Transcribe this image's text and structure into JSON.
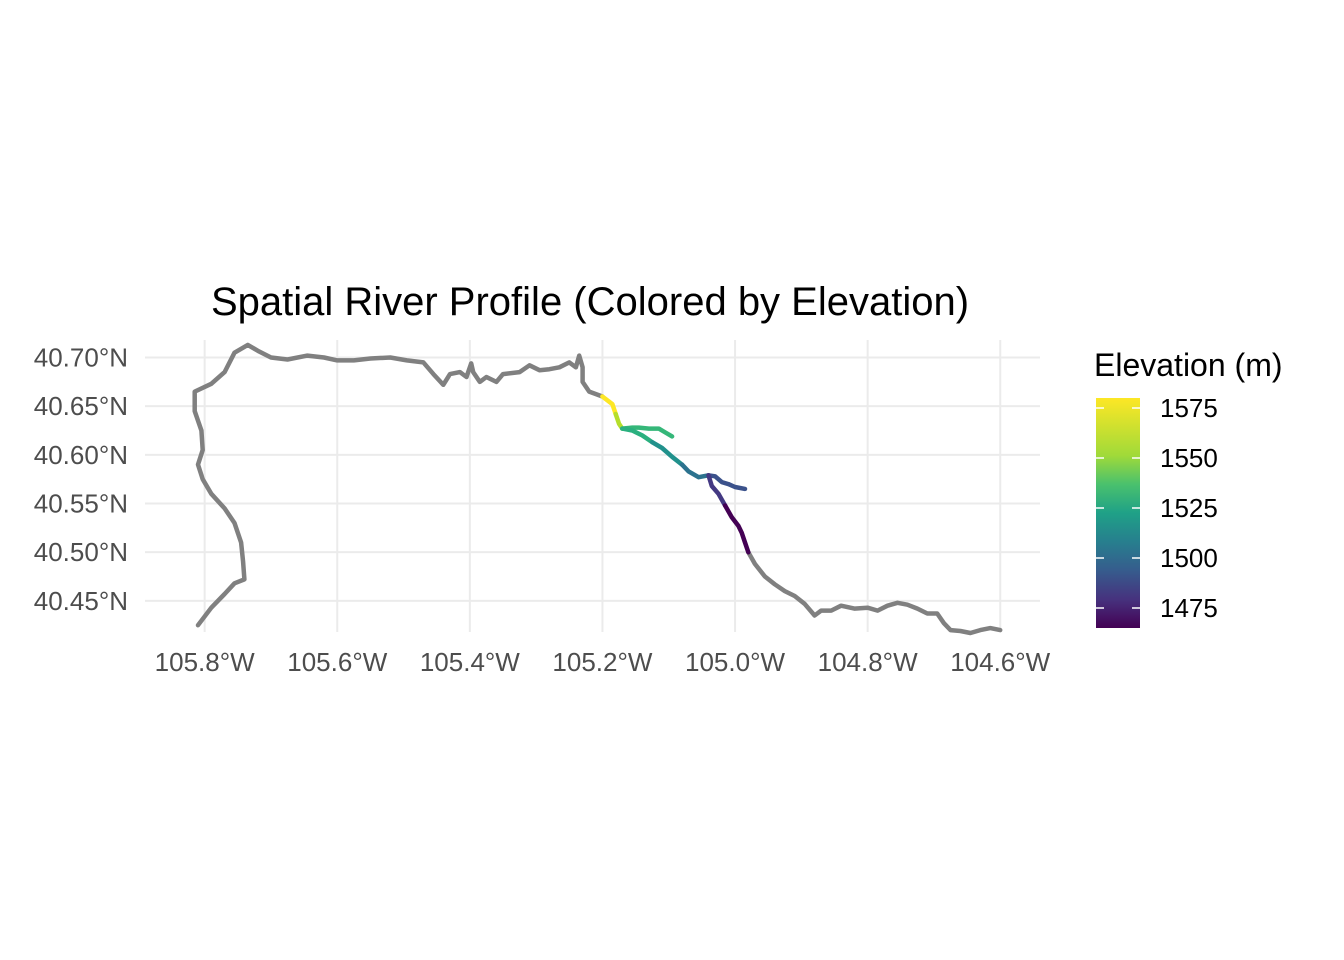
{
  "chart_data": {
    "type": "line",
    "title": "Spatial River Profile (Colored by Elevation)",
    "xlabel": "",
    "ylabel": "",
    "x_ticks": [
      {
        "value": -105.8,
        "label": "105.8°W"
      },
      {
        "value": -105.6,
        "label": "105.6°W"
      },
      {
        "value": -105.4,
        "label": "105.4°W"
      },
      {
        "value": -105.2,
        "label": "105.2°W"
      },
      {
        "value": -105.0,
        "label": "105.0°W"
      },
      {
        "value": -104.8,
        "label": "104.8°W"
      },
      {
        "value": -104.6,
        "label": "104.6°W"
      }
    ],
    "y_ticks": [
      {
        "value": 40.7,
        "label": "40.70°N"
      },
      {
        "value": 40.65,
        "label": "40.65°N"
      },
      {
        "value": 40.6,
        "label": "40.60°N"
      },
      {
        "value": 40.55,
        "label": "40.55°N"
      },
      {
        "value": 40.5,
        "label": "40.50°N"
      },
      {
        "value": 40.45,
        "label": "40.45°N"
      }
    ],
    "xlim": [
      -105.89,
      -104.54
    ],
    "ylim": [
      40.418,
      40.718
    ],
    "grid": true,
    "legend": {
      "title": "Elevation (m)",
      "position": "right",
      "colormap": "viridis",
      "range": [
        1465,
        1580
      ],
      "breaks": [
        {
          "value": 1575,
          "label": "1575"
        },
        {
          "value": 1550,
          "label": "1550"
        },
        {
          "value": 1525,
          "label": "1525"
        },
        {
          "value": 1500,
          "label": "1500"
        },
        {
          "value": 1475,
          "label": "1475"
        }
      ]
    },
    "series": [
      {
        "color": "#808080",
        "points": [
          [
            -105.81,
            40.425
          ],
          [
            -105.79,
            40.443
          ],
          [
            -105.77,
            40.457
          ],
          [
            -105.755,
            40.468
          ],
          [
            -105.74,
            40.472
          ],
          [
            -105.742,
            40.49
          ],
          [
            -105.745,
            40.51
          ],
          [
            -105.755,
            40.53
          ],
          [
            -105.77,
            40.545
          ],
          [
            -105.79,
            40.56
          ],
          [
            -105.803,
            40.575
          ],
          [
            -105.81,
            40.59
          ],
          [
            -105.803,
            40.605
          ],
          [
            -105.805,
            40.625
          ],
          [
            -105.815,
            40.645
          ],
          [
            -105.815,
            40.665
          ],
          [
            -105.79,
            40.673
          ],
          [
            -105.77,
            40.685
          ],
          [
            -105.755,
            40.705
          ],
          [
            -105.735,
            40.713
          ],
          [
            -105.72,
            40.707
          ],
          [
            -105.7,
            40.7
          ],
          [
            -105.675,
            40.698
          ],
          [
            -105.645,
            40.702
          ],
          [
            -105.62,
            40.7
          ],
          [
            -105.6,
            40.697
          ],
          [
            -105.575,
            40.697
          ],
          [
            -105.55,
            40.699
          ],
          [
            -105.52,
            40.7
          ],
          [
            -105.495,
            40.697
          ],
          [
            -105.47,
            40.695
          ],
          [
            -105.455,
            40.683
          ],
          [
            -105.44,
            40.672
          ],
          [
            -105.43,
            40.683
          ],
          [
            -105.415,
            40.685
          ],
          [
            -105.405,
            40.68
          ],
          [
            -105.398,
            40.694
          ],
          [
            -105.395,
            40.685
          ],
          [
            -105.385,
            40.675
          ],
          [
            -105.375,
            40.68
          ],
          [
            -105.36,
            40.675
          ],
          [
            -105.35,
            40.683
          ],
          [
            -105.325,
            40.685
          ],
          [
            -105.31,
            40.692
          ],
          [
            -105.295,
            40.687
          ],
          [
            -105.28,
            40.688
          ],
          [
            -105.265,
            40.69
          ],
          [
            -105.25,
            40.695
          ],
          [
            -105.24,
            40.69
          ],
          [
            -105.235,
            40.702
          ],
          [
            -105.23,
            40.69
          ],
          [
            -105.23,
            40.675
          ],
          [
            -105.22,
            40.665
          ],
          [
            -105.2,
            40.66
          ]
        ]
      },
      {
        "color": "#808080",
        "points": [
          [
            -104.98,
            40.5
          ],
          [
            -104.97,
            40.488
          ],
          [
            -104.955,
            40.475
          ],
          [
            -104.94,
            40.467
          ],
          [
            -104.925,
            40.46
          ],
          [
            -104.91,
            40.455
          ],
          [
            -104.895,
            40.447
          ],
          [
            -104.88,
            40.435
          ],
          [
            -104.87,
            40.44
          ],
          [
            -104.855,
            40.44
          ],
          [
            -104.84,
            40.445
          ],
          [
            -104.82,
            40.442
          ],
          [
            -104.8,
            40.443
          ],
          [
            -104.785,
            40.44
          ],
          [
            -104.77,
            40.445
          ],
          [
            -104.755,
            40.448
          ],
          [
            -104.74,
            40.446
          ],
          [
            -104.725,
            40.442
          ],
          [
            -104.71,
            40.437
          ],
          [
            -104.695,
            40.437
          ],
          [
            -104.685,
            40.427
          ],
          [
            -104.675,
            40.42
          ],
          [
            -104.66,
            40.419
          ],
          [
            -104.645,
            40.417
          ],
          [
            -104.63,
            40.42
          ],
          [
            -104.615,
            40.422
          ],
          [
            -104.6,
            40.42
          ]
        ]
      },
      {
        "color": "#fde725",
        "points": [
          [
            -105.2,
            40.66
          ],
          [
            -105.185,
            40.652
          ],
          [
            -105.18,
            40.642
          ]
        ]
      },
      {
        "color": "#b5de2b",
        "points": [
          [
            -105.18,
            40.642
          ],
          [
            -105.175,
            40.632
          ],
          [
            -105.17,
            40.627
          ]
        ]
      },
      {
        "color": "#35b779",
        "points": [
          [
            -105.17,
            40.627
          ],
          [
            -105.155,
            40.628
          ],
          [
            -105.145,
            40.628
          ],
          [
            -105.13,
            40.627
          ],
          [
            -105.115,
            40.627
          ],
          [
            -105.105,
            40.623
          ],
          [
            -105.095,
            40.619
          ]
        ]
      },
      {
        "color": "#2ab07f",
        "points": [
          [
            -105.17,
            40.627
          ],
          [
            -105.155,
            40.625
          ],
          [
            -105.14,
            40.62
          ],
          [
            -105.125,
            40.613
          ]
        ]
      },
      {
        "color": "#21918c",
        "points": [
          [
            -105.125,
            40.613
          ],
          [
            -105.11,
            40.607
          ],
          [
            -105.095,
            40.598
          ],
          [
            -105.08,
            40.59
          ]
        ]
      },
      {
        "color": "#2c728e",
        "points": [
          [
            -105.08,
            40.59
          ],
          [
            -105.07,
            40.583
          ],
          [
            -105.055,
            40.577
          ],
          [
            -105.04,
            40.579
          ]
        ]
      },
      {
        "color": "#3b528b",
        "points": [
          [
            -105.04,
            40.579
          ],
          [
            -105.03,
            40.578
          ],
          [
            -105.02,
            40.572
          ],
          [
            -105.01,
            40.57
          ],
          [
            -105.0,
            40.567
          ],
          [
            -104.985,
            40.565
          ]
        ]
      },
      {
        "color": "#443983",
        "points": [
          [
            -105.04,
            40.579
          ],
          [
            -105.035,
            40.568
          ],
          [
            -105.025,
            40.56
          ],
          [
            -105.015,
            40.548
          ]
        ]
      },
      {
        "color": "#440154",
        "points": [
          [
            -105.015,
            40.548
          ],
          [
            -105.005,
            40.536
          ],
          [
            -104.995,
            40.527
          ],
          [
            -104.99,
            40.52
          ],
          [
            -104.985,
            40.51
          ],
          [
            -104.98,
            40.5
          ]
        ]
      }
    ]
  }
}
